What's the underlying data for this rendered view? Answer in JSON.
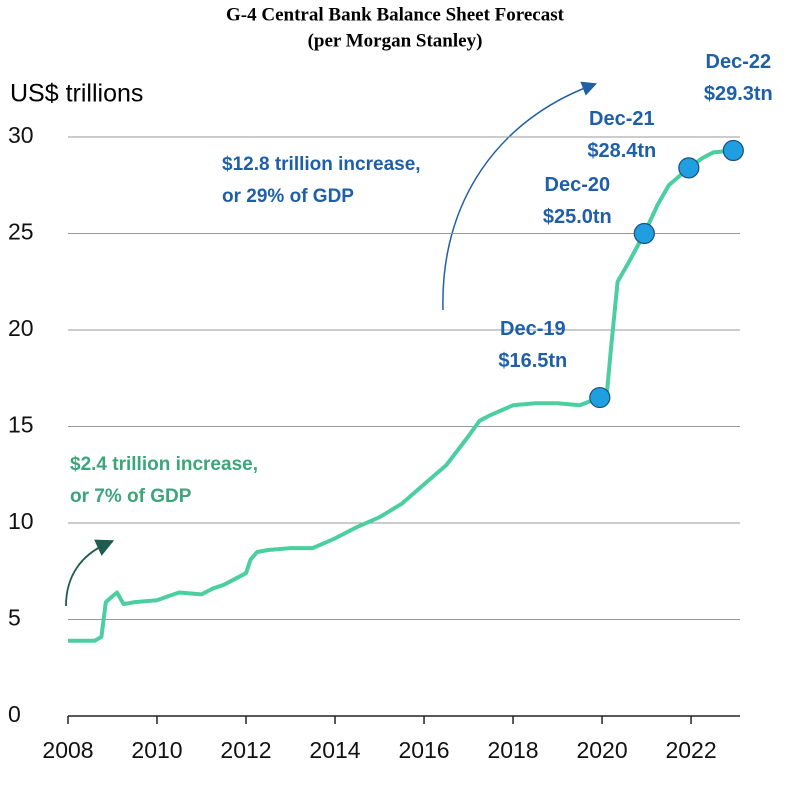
{
  "chart_data": {
    "type": "line",
    "title": "G-4 Central Bank Balance Sheet Forecast",
    "subtitle": "(per Morgan Stanley)",
    "y_label": "US$ trillions",
    "xlim": [
      2008,
      2023.1
    ],
    "ylim": [
      0,
      30
    ],
    "xticks": [
      2008,
      2010,
      2012,
      2014,
      2016,
      2018,
      2020,
      2022
    ],
    "yticks": [
      0,
      5,
      10,
      15,
      20,
      25,
      30
    ],
    "grid": true,
    "color": "#4ccfa0",
    "x": [
      2008.0,
      2008.5,
      2008.6,
      2008.75,
      2008.85,
      2009.0,
      2009.1,
      2009.25,
      2009.5,
      2010.0,
      2010.25,
      2010.5,
      2011.0,
      2011.25,
      2011.5,
      2012.0,
      2012.1,
      2012.25,
      2012.5,
      2013.0,
      2013.5,
      2014.0,
      2014.5,
      2015.0,
      2015.5,
      2016.0,
      2016.5,
      2017.0,
      2017.25,
      2017.5,
      2018.0,
      2018.5,
      2019.0,
      2019.5,
      2019.95,
      2020.1,
      2020.2,
      2020.35,
      2020.6,
      2020.95,
      2021.25,
      2021.5,
      2021.95,
      2022.25,
      2022.5,
      2022.95
    ],
    "values": [
      3.9,
      3.9,
      3.9,
      4.1,
      5.9,
      6.2,
      6.4,
      5.8,
      5.9,
      6.0,
      6.2,
      6.4,
      6.3,
      6.6,
      6.8,
      7.4,
      8.1,
      8.5,
      8.6,
      8.7,
      8.7,
      9.2,
      9.8,
      10.3,
      11.0,
      12.0,
      13.0,
      14.5,
      15.3,
      15.6,
      16.1,
      16.2,
      16.2,
      16.1,
      16.5,
      16.5,
      19.0,
      22.5,
      23.5,
      25.0,
      26.5,
      27.5,
      28.4,
      28.9,
      29.2,
      29.3
    ],
    "highlights": {
      "color": "#1f9ee0",
      "x": [
        2019.95,
        2020.95,
        2021.95,
        2022.95
      ],
      "values": [
        16.5,
        25.0,
        28.4,
        29.3
      ],
      "dates": [
        "Dec-19",
        "Dec-20",
        "Dec-21",
        "Dec-22"
      ],
      "value_labels": [
        "$16.5tn",
        "$25.0tn",
        "$28.4tn",
        "$29.3tn"
      ]
    },
    "annotations": [
      {
        "lines": [
          "$12.8 trillion increase,",
          "or 29% of GDP"
        ],
        "color": "#1f5fa8"
      },
      {
        "lines": [
          "$2.4 trillion increase,",
          "or 7% of GDP"
        ],
        "color": "#3aa67a"
      }
    ]
  }
}
